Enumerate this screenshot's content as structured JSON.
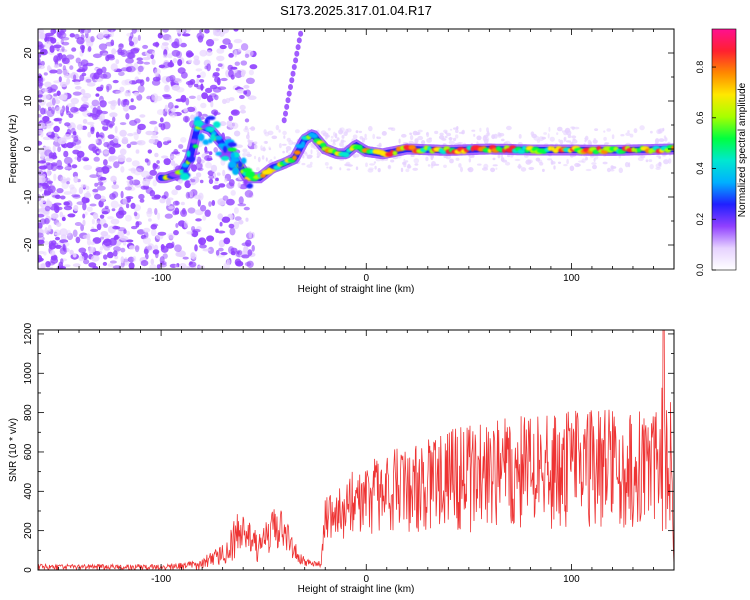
{
  "title": "S173.2025.317.01.04.R17",
  "colors": {
    "snr_line": "#ee3333",
    "axis": "#000000",
    "colormap": [
      "#ffffff",
      "#e6d2ff",
      "#9040ff",
      "#2020ff",
      "#00b0ff",
      "#00e8d0",
      "#00ff40",
      "#a8ff00",
      "#ffe800",
      "#ff8800",
      "#ff2030",
      "#ff1090"
    ]
  },
  "chart_data": [
    {
      "type": "heatmap",
      "title": "S173.2025.317.01.04.R17",
      "xlabel": "Height of straight line (km)",
      "ylabel": "Frequency (Hz)",
      "xlim": [
        -160,
        150
      ],
      "ylim": [
        -25,
        25
      ],
      "xticks": [
        -100,
        0,
        100
      ],
      "yticks": [
        -20,
        -10,
        0,
        10,
        20
      ],
      "colorbar": {
        "label": "Normalized spectral amplitude",
        "range": [
          0,
          0.95
        ],
        "ticks": [
          0.0,
          0.2,
          0.4,
          0.6,
          0.8
        ]
      },
      "ridge": [
        {
          "x": -98,
          "y": -6
        },
        {
          "x": -90,
          "y": -5
        },
        {
          "x": -86,
          "y": -2
        },
        {
          "x": -82,
          "y": 5
        },
        {
          "x": -76,
          "y": 4
        },
        {
          "x": -70,
          "y": 1
        },
        {
          "x": -64,
          "y": -2
        },
        {
          "x": -58,
          "y": -6
        },
        {
          "x": -52,
          "y": -6
        },
        {
          "x": -46,
          "y": -4
        },
        {
          "x": -40,
          "y": -3
        },
        {
          "x": -35,
          "y": -2
        },
        {
          "x": -30,
          "y": 2
        },
        {
          "x": -26,
          "y": 3
        },
        {
          "x": -20,
          "y": 0
        },
        {
          "x": -14,
          "y": -1
        },
        {
          "x": -10,
          "y": -1
        },
        {
          "x": -5,
          "y": 0.8
        },
        {
          "x": 0,
          "y": -0.5
        },
        {
          "x": 8,
          "y": -1
        },
        {
          "x": 20,
          "y": 0
        },
        {
          "x": 40,
          "y": -0.3
        },
        {
          "x": 60,
          "y": 0
        },
        {
          "x": 80,
          "y": -0.2
        },
        {
          "x": 100,
          "y": -0.2
        },
        {
          "x": 120,
          "y": -0.3
        },
        {
          "x": 150,
          "y": 0
        }
      ]
    },
    {
      "type": "line",
      "xlabel": "Height of straight line (km)",
      "ylabel": "SNR (10 * v/v)",
      "xlim": [
        -160,
        150
      ],
      "ylim": [
        0,
        1220
      ],
      "xticks": [
        -100,
        0,
        100
      ],
      "yticks": [
        0,
        200,
        400,
        600,
        800,
        1000,
        1200
      ],
      "envelope": {
        "x": [
          -160,
          -95,
          -82,
          -70,
          -64,
          -58,
          -52,
          -46,
          -42,
          -36,
          -30,
          -22,
          -20,
          -10,
          0,
          20,
          40,
          60,
          80,
          100,
          120,
          135,
          148,
          150
        ],
        "mean": [
          15,
          15,
          25,
          80,
          170,
          160,
          110,
          190,
          230,
          110,
          40,
          30,
          260,
          320,
          360,
          420,
          450,
          480,
          500,
          510,
          520,
          540,
          600,
          200
        ],
        "amp": [
          15,
          15,
          25,
          50,
          120,
          100,
          80,
          110,
          120,
          60,
          20,
          15,
          110,
          160,
          190,
          230,
          270,
          280,
          290,
          300,
          310,
          320,
          420,
          200
        ]
      },
      "peak": {
        "x": 145,
        "y": 1220
      }
    }
  ]
}
